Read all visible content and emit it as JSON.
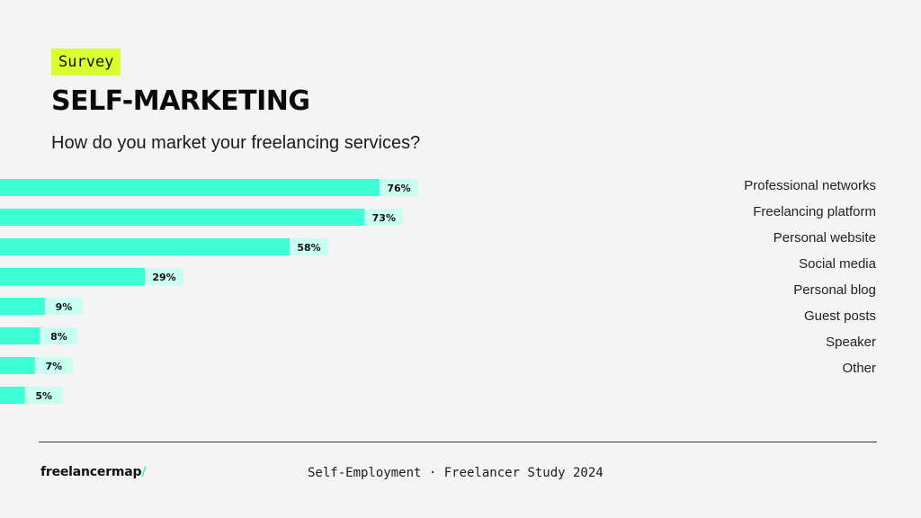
{
  "header": {
    "tag": "Survey",
    "title": "SELF-MARKETING",
    "subtitle": "How do you market your freelancing services?"
  },
  "colors": {
    "tag_bg": "#d9ff2e",
    "bar": "#3dffd6",
    "bar_label_bg": "#c9fff0",
    "logo_accent": "#35e8c4"
  },
  "chart_data": {
    "type": "bar",
    "orientation": "horizontal",
    "categories": [
      "Professional networks",
      "Freelancing platform",
      "Personal website",
      "Social media",
      "Personal blog",
      "Guest posts",
      "Speaker",
      "Other"
    ],
    "values": [
      76,
      73,
      58,
      29,
      9,
      8,
      7,
      5
    ],
    "value_labels": [
      "76%",
      "73%",
      "58%",
      "29%",
      "9%",
      "8%",
      "7%",
      "5%"
    ],
    "unit": "%",
    "title": "SELF-MARKETING",
    "subtitle": "How do you market your freelancing services?",
    "xlim": [
      0,
      100
    ],
    "grid": false,
    "legend": "none"
  },
  "footer": {
    "logo_text": "freelancermap",
    "logo_slash": "/",
    "caption": "Self-Employment · Freelancer Study 2024"
  }
}
